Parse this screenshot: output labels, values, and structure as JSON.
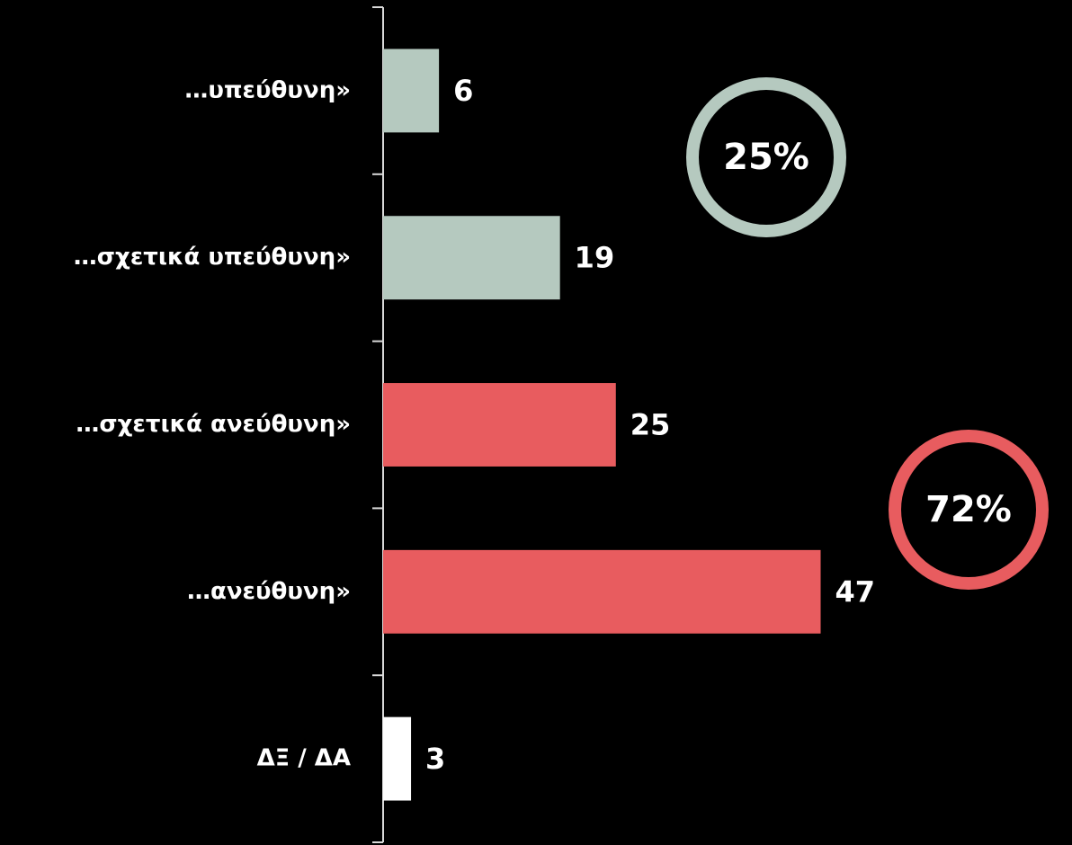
{
  "chart_data": {
    "type": "hbar",
    "categories": [
      "…υπεύθυνη»",
      "…σχετικά υπεύθυνη»",
      "…σχετικά ανεύθυνη»",
      "…ανεύθυνη»",
      "ΔΞ / ΔΑ"
    ],
    "values": [
      6,
      19,
      25,
      47,
      3
    ],
    "colors": [
      "#b5c9bf",
      "#b5c9bf",
      "#e85c5f",
      "#e85c5f",
      "#ffffff"
    ],
    "xlim": [
      0,
      74
    ],
    "annotations": [
      {
        "text": "25%",
        "color": "#b5c9bf"
      },
      {
        "text": "72%",
        "color": "#e85c5f"
      }
    ]
  }
}
